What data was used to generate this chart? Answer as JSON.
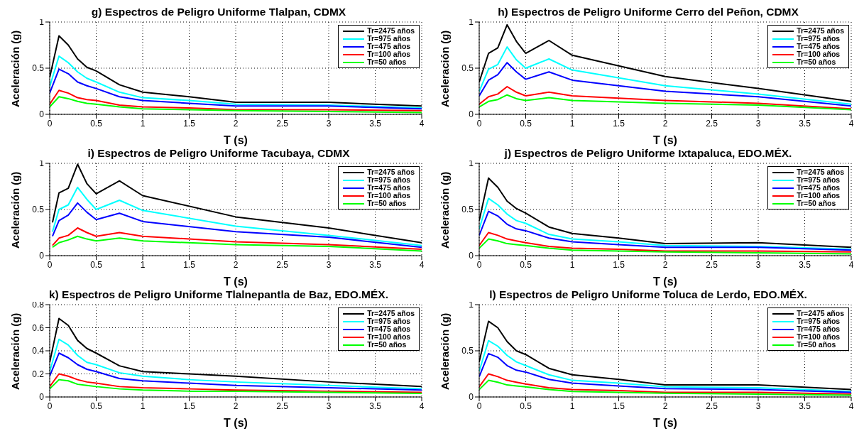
{
  "chart_data": [
    {
      "type": "line",
      "title": "g) Espectros de Peligro Uniforme Tlalpan, CDMX",
      "xlabel": "T (s)",
      "ylabel": "Aceleración (g)",
      "x": [
        0,
        0.1,
        0.2,
        0.3,
        0.4,
        0.5,
        0.75,
        1,
        1.5,
        2,
        3,
        4
      ],
      "xlim": [
        0,
        4
      ],
      "xticks": [
        0,
        0.5,
        1,
        1.5,
        2,
        2.5,
        3,
        3.5,
        4
      ],
      "ylim": [
        0,
        1
      ],
      "yticks": [
        0,
        0.5,
        1
      ],
      "grid": true,
      "legend": "top right",
      "series": [
        {
          "name": "Tr=2475 años",
          "color": "#000000",
          "values": [
            0.4,
            0.85,
            0.75,
            0.6,
            0.51,
            0.47,
            0.32,
            0.24,
            0.19,
            0.13,
            0.13,
            0.09
          ]
        },
        {
          "name": "Tr=975 años",
          "color": "#00ffff",
          "values": [
            0.3,
            0.63,
            0.56,
            0.46,
            0.39,
            0.35,
            0.24,
            0.18,
            0.15,
            0.11,
            0.1,
            0.07
          ]
        },
        {
          "name": "Tr=475 años",
          "color": "#0000ff",
          "values": [
            0.23,
            0.49,
            0.44,
            0.35,
            0.31,
            0.28,
            0.19,
            0.15,
            0.12,
            0.09,
            0.09,
            0.06
          ]
        },
        {
          "name": "Tr=100 años",
          "color": "#ff0000",
          "values": [
            0.11,
            0.26,
            0.23,
            0.18,
            0.16,
            0.15,
            0.1,
            0.08,
            0.07,
            0.05,
            0.05,
            0.04
          ]
        },
        {
          "name": "Tr=50 años",
          "color": "#00ff00",
          "values": [
            0.08,
            0.19,
            0.17,
            0.14,
            0.12,
            0.11,
            0.08,
            0.06,
            0.05,
            0.04,
            0.03,
            0.02
          ]
        }
      ]
    },
    {
      "type": "line",
      "title": "h) Espectros de Peligro Uniforme Cerro del Peñon, CDMX",
      "xlabel": "T (s)",
      "ylabel": "Aceleración (g)",
      "x": [
        0,
        0.1,
        0.2,
        0.3,
        0.4,
        0.5,
        0.75,
        1,
        2,
        3,
        4
      ],
      "xlim": [
        0,
        4
      ],
      "xticks": [
        0,
        0.5,
        1,
        1.5,
        2,
        2.5,
        3,
        3.5,
        4
      ],
      "ylim": [
        0,
        1
      ],
      "yticks": [
        0,
        0.5,
        1
      ],
      "grid": true,
      "legend": "top right",
      "series": [
        {
          "name": "Tr=2475 años",
          "color": "#000000",
          "values": [
            0.35,
            0.66,
            0.72,
            0.97,
            0.79,
            0.66,
            0.8,
            0.64,
            0.41,
            0.28,
            0.14
          ]
        },
        {
          "name": "Tr=975 años",
          "color": "#00ffff",
          "values": [
            0.25,
            0.49,
            0.54,
            0.73,
            0.59,
            0.5,
            0.6,
            0.48,
            0.31,
            0.22,
            0.11
          ]
        },
        {
          "name": "Tr=475 años",
          "color": "#0000ff",
          "values": [
            0.2,
            0.37,
            0.43,
            0.56,
            0.46,
            0.38,
            0.46,
            0.37,
            0.25,
            0.19,
            0.09
          ]
        },
        {
          "name": "Tr=100 años",
          "color": "#ff0000",
          "values": [
            0.11,
            0.19,
            0.22,
            0.3,
            0.24,
            0.2,
            0.24,
            0.2,
            0.15,
            0.12,
            0.06
          ]
        },
        {
          "name": "Tr=50 años",
          "color": "#00ff00",
          "values": [
            0.08,
            0.14,
            0.16,
            0.21,
            0.17,
            0.15,
            0.18,
            0.15,
            0.12,
            0.1,
            0.05
          ]
        }
      ]
    },
    {
      "type": "line",
      "title": "i) Espectros de Peligro Uniforme Tacubaya, CDMX",
      "xlabel": "T (s)",
      "ylabel": "Aceleración (g)",
      "x": [
        0.03,
        0.1,
        0.2,
        0.3,
        0.4,
        0.5,
        0.75,
        1,
        2,
        3,
        4
      ],
      "xlim": [
        0,
        4
      ],
      "xticks": [
        0,
        0.5,
        1,
        1.5,
        2,
        2.5,
        3,
        3.5,
        4
      ],
      "ylim": [
        0,
        1
      ],
      "yticks": [
        0,
        0.5,
        1
      ],
      "grid": true,
      "legend": "top right",
      "series": [
        {
          "name": "Tr=2475 años",
          "color": "#000000",
          "values": [
            0.36,
            0.68,
            0.73,
            0.99,
            0.78,
            0.67,
            0.81,
            0.65,
            0.42,
            0.3,
            0.14
          ]
        },
        {
          "name": "Tr=975 años",
          "color": "#00ffff",
          "values": [
            0.26,
            0.5,
            0.55,
            0.74,
            0.61,
            0.5,
            0.6,
            0.49,
            0.32,
            0.22,
            0.11
          ]
        },
        {
          "name": "Tr=475 años",
          "color": "#0000ff",
          "values": [
            0.21,
            0.38,
            0.44,
            0.57,
            0.47,
            0.39,
            0.46,
            0.37,
            0.26,
            0.2,
            0.09
          ]
        },
        {
          "name": "Tr=100 años",
          "color": "#ff0000",
          "values": [
            0.11,
            0.19,
            0.22,
            0.3,
            0.25,
            0.21,
            0.25,
            0.21,
            0.15,
            0.12,
            0.07
          ]
        },
        {
          "name": "Tr=50 años",
          "color": "#00ff00",
          "values": [
            0.09,
            0.14,
            0.17,
            0.21,
            0.18,
            0.16,
            0.19,
            0.16,
            0.12,
            0.1,
            0.05
          ]
        }
      ]
    },
    {
      "type": "line",
      "title": "j) Espectros de Peligro Uniforme Ixtapaluca, EDO.MÉX.",
      "xlabel": "T (s)",
      "ylabel": "Aceleración (g)",
      "x": [
        0,
        0.1,
        0.2,
        0.3,
        0.4,
        0.5,
        0.75,
        1,
        1.5,
        2,
        3,
        4
      ],
      "xlim": [
        0,
        4
      ],
      "xticks": [
        0,
        0.5,
        1,
        1.5,
        2,
        2.5,
        3,
        3.5,
        4
      ],
      "ylim": [
        0,
        1
      ],
      "yticks": [
        0,
        0.5,
        1
      ],
      "grid": true,
      "legend": "top right",
      "series": [
        {
          "name": "Tr=2475 años",
          "color": "#000000",
          "values": [
            0.38,
            0.84,
            0.74,
            0.59,
            0.51,
            0.46,
            0.31,
            0.24,
            0.19,
            0.13,
            0.14,
            0.09
          ]
        },
        {
          "name": "Tr=975 años",
          "color": "#00ffff",
          "values": [
            0.29,
            0.62,
            0.55,
            0.45,
            0.38,
            0.35,
            0.23,
            0.18,
            0.15,
            0.11,
            0.1,
            0.07
          ]
        },
        {
          "name": "Tr=475 años",
          "color": "#0000ff",
          "values": [
            0.22,
            0.48,
            0.43,
            0.34,
            0.29,
            0.27,
            0.19,
            0.15,
            0.12,
            0.09,
            0.09,
            0.06
          ]
        },
        {
          "name": "Tr=100 años",
          "color": "#ff0000",
          "values": [
            0.11,
            0.25,
            0.22,
            0.18,
            0.16,
            0.14,
            0.1,
            0.08,
            0.07,
            0.05,
            0.05,
            0.04
          ]
        },
        {
          "name": "Tr=50 años",
          "color": "#00ff00",
          "values": [
            0.08,
            0.18,
            0.16,
            0.13,
            0.12,
            0.11,
            0.08,
            0.06,
            0.05,
            0.04,
            0.03,
            0.02
          ]
        }
      ]
    },
    {
      "type": "line",
      "title": "k) Espectros de Peligro Uniforme Tlalnepantla de Baz, EDO.MÉX.",
      "xlabel": "T (s)",
      "ylabel": "Aceleración (g)",
      "x": [
        0,
        0.1,
        0.2,
        0.3,
        0.4,
        0.5,
        0.75,
        1,
        1.5,
        2,
        3,
        4
      ],
      "xlim": [
        0,
        4
      ],
      "xticks": [
        0,
        0.5,
        1,
        1.5,
        2,
        2.5,
        3,
        3.5,
        4
      ],
      "ylim": [
        0,
        0.8
      ],
      "yticks": [
        0,
        0.2,
        0.4,
        0.6,
        0.8
      ],
      "grid": true,
      "legend": "top right",
      "series": [
        {
          "name": "Tr=2475 años",
          "color": "#000000",
          "values": [
            0.3,
            0.68,
            0.62,
            0.49,
            0.42,
            0.38,
            0.27,
            0.22,
            0.2,
            0.18,
            0.13,
            0.09
          ]
        },
        {
          "name": "Tr=975 años",
          "color": "#00ffff",
          "values": [
            0.22,
            0.5,
            0.45,
            0.36,
            0.3,
            0.28,
            0.21,
            0.18,
            0.15,
            0.13,
            0.1,
            0.07
          ]
        },
        {
          "name": "Tr=475 años",
          "color": "#0000ff",
          "values": [
            0.18,
            0.38,
            0.34,
            0.28,
            0.24,
            0.22,
            0.16,
            0.14,
            0.12,
            0.1,
            0.08,
            0.06
          ]
        },
        {
          "name": "Tr=100 años",
          "color": "#ff0000",
          "values": [
            0.09,
            0.2,
            0.18,
            0.15,
            0.13,
            0.12,
            0.09,
            0.08,
            0.07,
            0.06,
            0.05,
            0.04
          ]
        },
        {
          "name": "Tr=50 años",
          "color": "#00ff00",
          "values": [
            0.07,
            0.15,
            0.14,
            0.11,
            0.1,
            0.09,
            0.07,
            0.06,
            0.05,
            0.05,
            0.04,
            0.03
          ]
        }
      ]
    },
    {
      "type": "line",
      "title": "l) Espectros de Peligro Uniforme Toluca de Lerdo, EDO.MÉX.",
      "xlabel": "T (s)",
      "ylabel": "Aceleración (g)",
      "x": [
        0,
        0.1,
        0.2,
        0.3,
        0.4,
        0.5,
        0.75,
        1,
        1.5,
        2,
        3,
        4
      ],
      "xlim": [
        0,
        4
      ],
      "xticks": [
        0,
        0.5,
        1,
        1.5,
        2,
        2.5,
        3,
        3.5,
        4
      ],
      "ylim": [
        0,
        1
      ],
      "yticks": [
        0,
        0.5,
        1
      ],
      "grid": true,
      "legend": "top right",
      "series": [
        {
          "name": "Tr=2475 años",
          "color": "#000000",
          "values": [
            0.38,
            0.82,
            0.75,
            0.6,
            0.5,
            0.46,
            0.31,
            0.24,
            0.19,
            0.13,
            0.13,
            0.08
          ]
        },
        {
          "name": "Tr=975 años",
          "color": "#00ffff",
          "values": [
            0.28,
            0.61,
            0.55,
            0.45,
            0.38,
            0.34,
            0.24,
            0.18,
            0.15,
            0.11,
            0.1,
            0.06
          ]
        },
        {
          "name": "Tr=475 años",
          "color": "#0000ff",
          "values": [
            0.22,
            0.47,
            0.43,
            0.34,
            0.29,
            0.27,
            0.19,
            0.15,
            0.12,
            0.09,
            0.08,
            0.05
          ]
        },
        {
          "name": "Tr=100 años",
          "color": "#ff0000",
          "values": [
            0.11,
            0.25,
            0.22,
            0.18,
            0.16,
            0.14,
            0.1,
            0.08,
            0.07,
            0.05,
            0.05,
            0.03
          ]
        },
        {
          "name": "Tr=50 años",
          "color": "#00ff00",
          "values": [
            0.08,
            0.18,
            0.16,
            0.13,
            0.12,
            0.11,
            0.08,
            0.06,
            0.05,
            0.04,
            0.03,
            0.02
          ]
        }
      ]
    }
  ]
}
